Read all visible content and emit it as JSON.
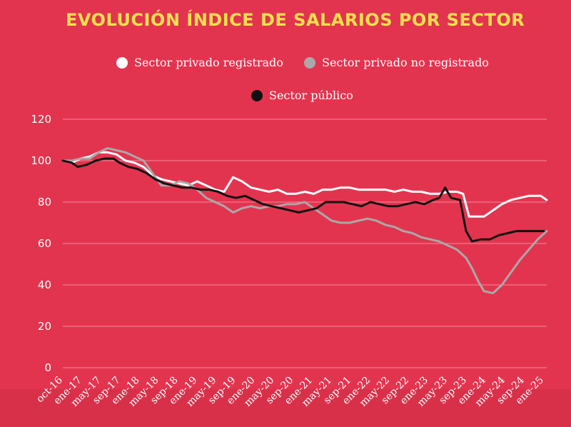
{
  "chart_data": {
    "type": "line",
    "title": "EVOLUCIÓN ÍNDICE DE SALARIOS POR SECTOR",
    "xlabel": "",
    "ylabel": "",
    "ylim": [
      0,
      120
    ],
    "yticks": [
      0,
      20,
      40,
      60,
      80,
      100,
      120
    ],
    "grid": true,
    "legend_position": "top",
    "x_tick_labels": [
      "oct-16",
      "ene-17",
      "may-17",
      "sep-17",
      "ene-18",
      "may-18",
      "sep-18",
      "ene-19",
      "may-19",
      "sep-19",
      "ene-20",
      "may-20",
      "sep-20",
      "ene-21",
      "may-21",
      "sep-21",
      "ene-22",
      "may-22",
      "sep-22",
      "ene-23",
      "may-23",
      "sep-23",
      "ene-24",
      "may-24",
      "sep-24",
      "ene-25"
    ],
    "series": [
      {
        "name": "Sector privado registrado",
        "color": "#ffffff",
        "values": [
          [
            0,
            100
          ],
          [
            3,
            99
          ],
          [
            6,
            101
          ],
          [
            9,
            102
          ],
          [
            12,
            104
          ],
          [
            15,
            104
          ],
          [
            18,
            103
          ],
          [
            21,
            100
          ],
          [
            24,
            99
          ],
          [
            27,
            97
          ],
          [
            30,
            93
          ],
          [
            33,
            91
          ],
          [
            36,
            90
          ],
          [
            39,
            89
          ],
          [
            42,
            88
          ],
          [
            45,
            90
          ],
          [
            48,
            88
          ],
          [
            51,
            86
          ],
          [
            54,
            85
          ],
          [
            57,
            92
          ],
          [
            60,
            90
          ],
          [
            63,
            87
          ],
          [
            66,
            86
          ],
          [
            69,
            85
          ],
          [
            72,
            86
          ],
          [
            75,
            84
          ],
          [
            78,
            84
          ],
          [
            81,
            85
          ],
          [
            84,
            84
          ],
          [
            87,
            86
          ],
          [
            90,
            86
          ],
          [
            93,
            87
          ],
          [
            96,
            87
          ],
          [
            99,
            86
          ],
          [
            102,
            86
          ],
          [
            105,
            86
          ],
          [
            108,
            86
          ],
          [
            111,
            85
          ],
          [
            114,
            86
          ],
          [
            117,
            85
          ],
          [
            120,
            85
          ],
          [
            123,
            84
          ],
          [
            126,
            84
          ],
          [
            129,
            85
          ],
          [
            132,
            85
          ],
          [
            134,
            84
          ],
          [
            136,
            73
          ],
          [
            139,
            73
          ],
          [
            141,
            73
          ],
          [
            144,
            76
          ],
          [
            147,
            79
          ],
          [
            150,
            81
          ],
          [
            153,
            82
          ],
          [
            156,
            83
          ],
          [
            159,
            83
          ],
          [
            160,
            83
          ],
          [
            162,
            81
          ]
        ]
      },
      {
        "name": "Sector privado no registrado",
        "color": "#a9a9a9",
        "values": [
          [
            0,
            100
          ],
          [
            3,
            100
          ],
          [
            6,
            101
          ],
          [
            9,
            101
          ],
          [
            12,
            104
          ],
          [
            15,
            106
          ],
          [
            18,
            105
          ],
          [
            21,
            104
          ],
          [
            24,
            102
          ],
          [
            27,
            100
          ],
          [
            30,
            94
          ],
          [
            33,
            88
          ],
          [
            36,
            88
          ],
          [
            39,
            90
          ],
          [
            42,
            89
          ],
          [
            45,
            86
          ],
          [
            48,
            82
          ],
          [
            51,
            80
          ],
          [
            54,
            78
          ],
          [
            57,
            75
          ],
          [
            60,
            77
          ],
          [
            63,
            78
          ],
          [
            66,
            77
          ],
          [
            69,
            78
          ],
          [
            72,
            78
          ],
          [
            75,
            79
          ],
          [
            78,
            79
          ],
          [
            81,
            80
          ],
          [
            84,
            77
          ],
          [
            87,
            74
          ],
          [
            90,
            71
          ],
          [
            93,
            70
          ],
          [
            96,
            70
          ],
          [
            99,
            71
          ],
          [
            102,
            72
          ],
          [
            105,
            71
          ],
          [
            108,
            69
          ],
          [
            111,
            68
          ],
          [
            114,
            66
          ],
          [
            117,
            65
          ],
          [
            120,
            63
          ],
          [
            123,
            62
          ],
          [
            126,
            61
          ],
          [
            129,
            59
          ],
          [
            132,
            57
          ],
          [
            135,
            53
          ],
          [
            137,
            48
          ],
          [
            139,
            42
          ],
          [
            141,
            37
          ],
          [
            144,
            36
          ],
          [
            147,
            40
          ],
          [
            150,
            46
          ],
          [
            153,
            52
          ],
          [
            156,
            57
          ],
          [
            159,
            62
          ],
          [
            162,
            66
          ]
        ]
      },
      {
        "name": "Sector público",
        "color": "#111111",
        "values": [
          [
            0,
            100
          ],
          [
            3,
            99
          ],
          [
            5,
            97
          ],
          [
            8,
            98
          ],
          [
            11,
            100
          ],
          [
            14,
            101
          ],
          [
            17,
            101
          ],
          [
            19,
            99
          ],
          [
            22,
            97
          ],
          [
            25,
            96
          ],
          [
            28,
            94
          ],
          [
            31,
            91
          ],
          [
            34,
            89
          ],
          [
            37,
            88
          ],
          [
            40,
            87
          ],
          [
            43,
            87
          ],
          [
            46,
            86
          ],
          [
            49,
            86
          ],
          [
            52,
            85
          ],
          [
            55,
            83
          ],
          [
            58,
            82
          ],
          [
            61,
            83
          ],
          [
            64,
            81
          ],
          [
            67,
            79
          ],
          [
            70,
            78
          ],
          [
            73,
            77
          ],
          [
            76,
            76
          ],
          [
            79,
            75
          ],
          [
            82,
            76
          ],
          [
            85,
            77
          ],
          [
            88,
            80
          ],
          [
            91,
            80
          ],
          [
            94,
            80
          ],
          [
            97,
            79
          ],
          [
            100,
            78
          ],
          [
            103,
            80
          ],
          [
            106,
            79
          ],
          [
            109,
            78
          ],
          [
            112,
            78
          ],
          [
            115,
            79
          ],
          [
            118,
            80
          ],
          [
            121,
            79
          ],
          [
            124,
            81
          ],
          [
            126,
            82
          ],
          [
            128,
            87
          ],
          [
            130,
            82
          ],
          [
            133,
            81
          ],
          [
            135,
            66
          ],
          [
            137,
            61
          ],
          [
            140,
            62
          ],
          [
            143,
            62
          ],
          [
            146,
            64
          ],
          [
            149,
            65
          ],
          [
            152,
            66
          ],
          [
            155,
            66
          ],
          [
            158,
            66
          ],
          [
            161,
            66
          ]
        ]
      }
    ]
  }
}
